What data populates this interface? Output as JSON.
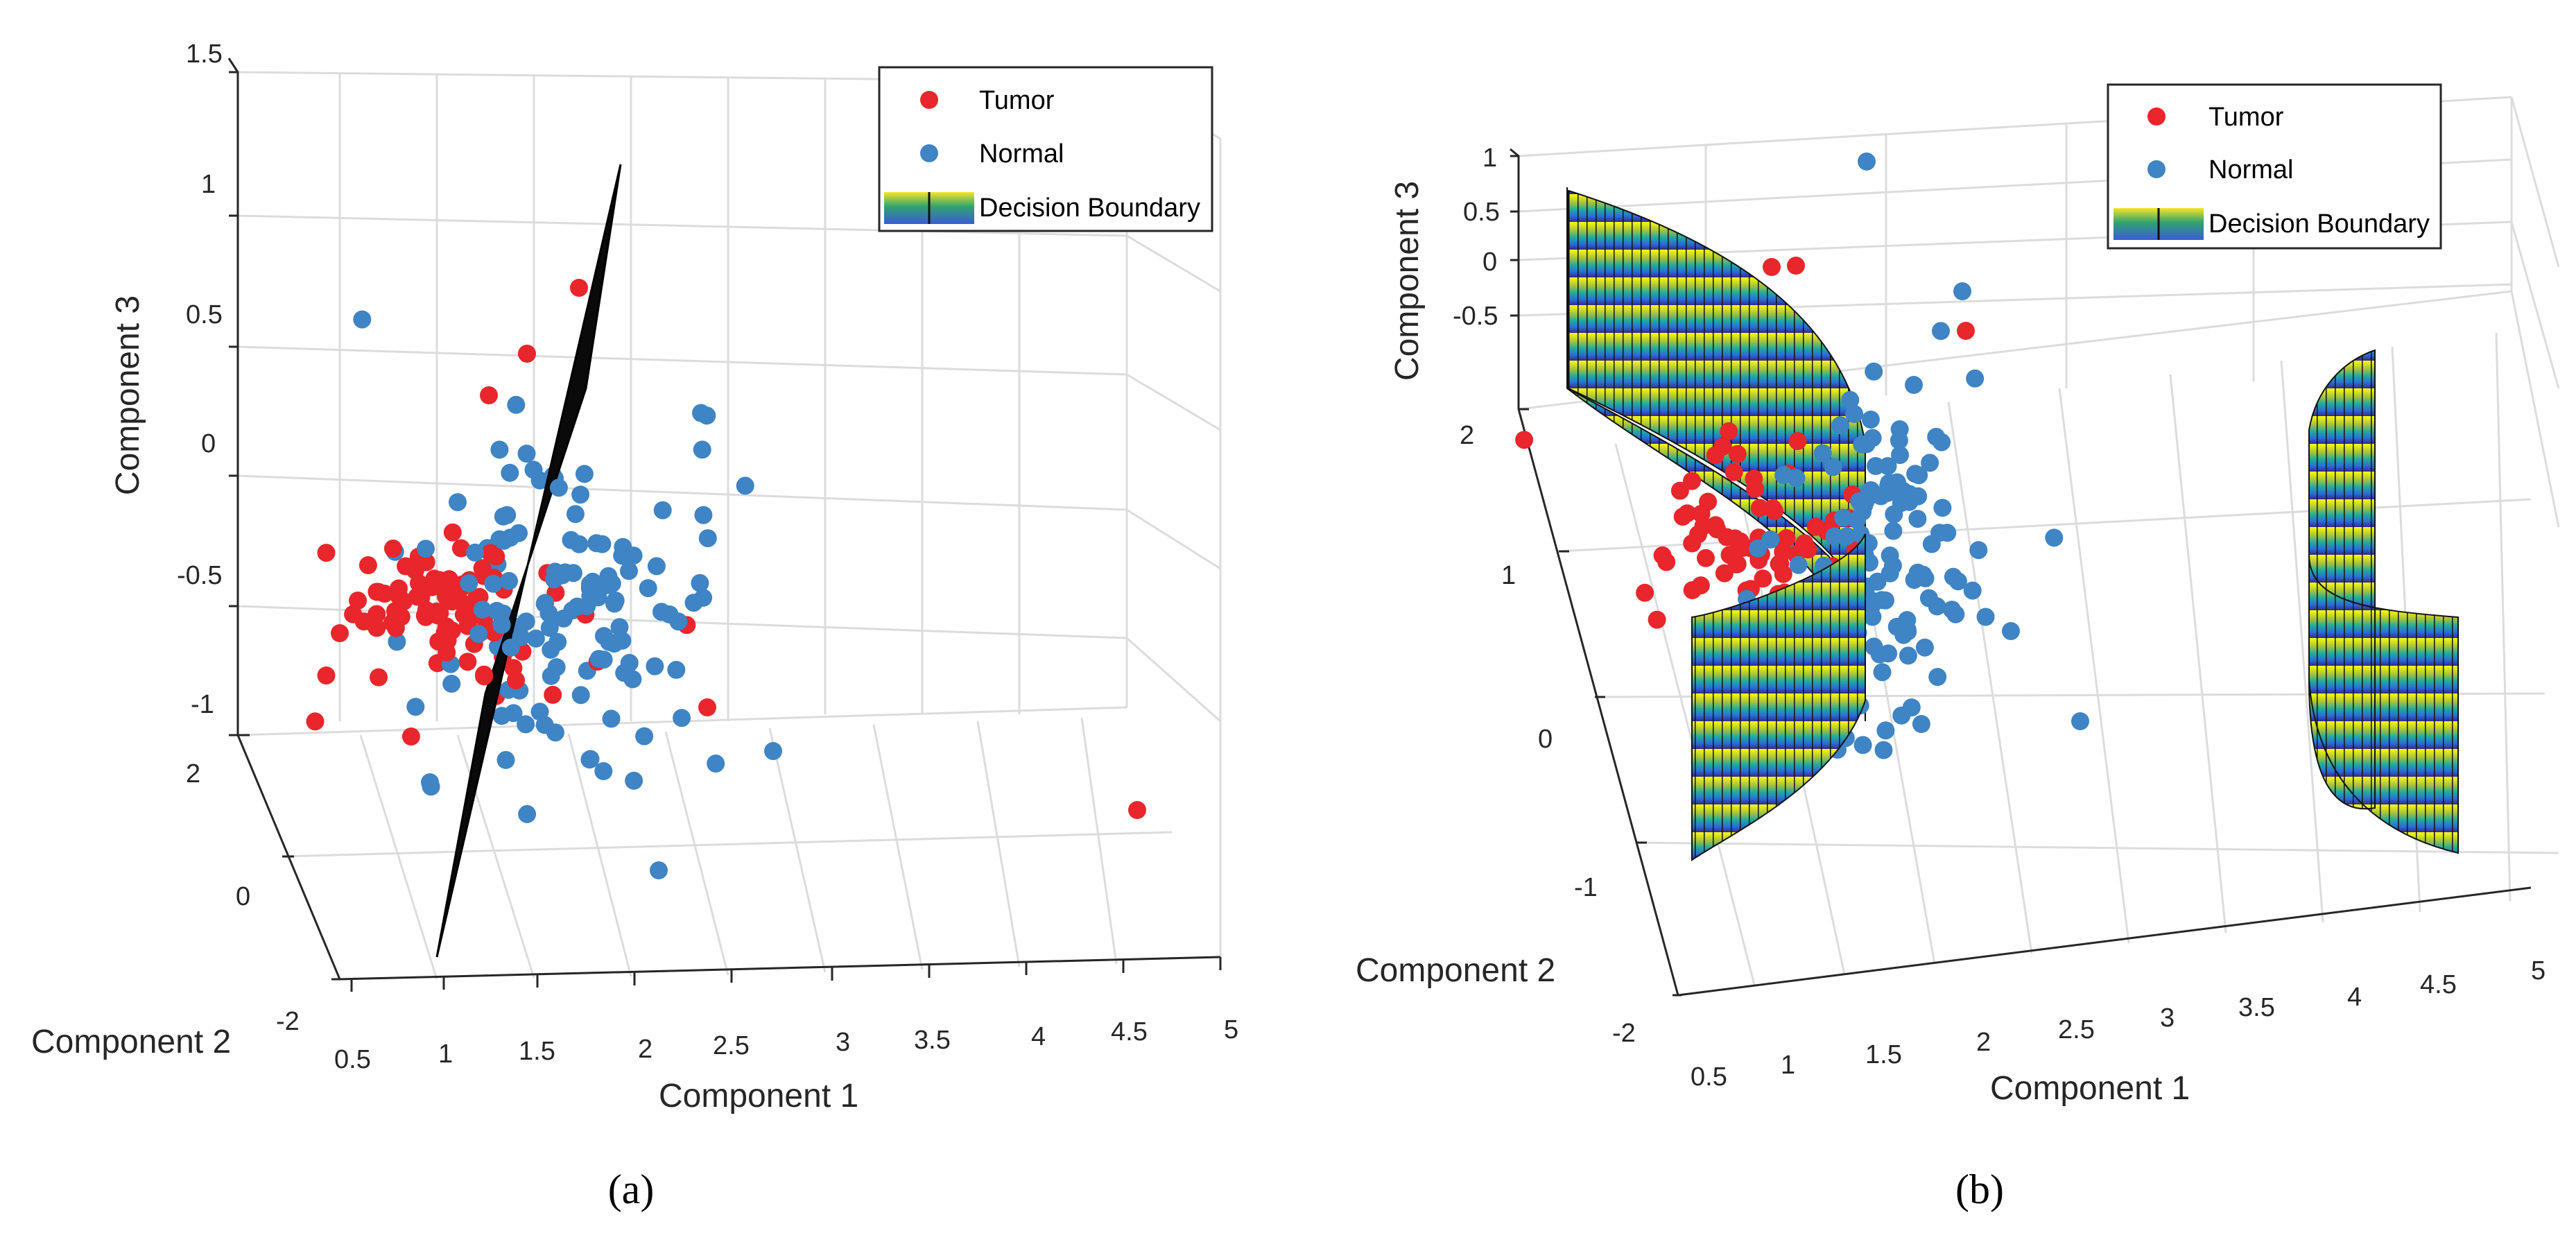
{
  "chart_data": [
    {
      "id": "a",
      "type": "scatter",
      "caption": "(a)",
      "xlabel": "Component 1",
      "ylabel": "Component 2",
      "zlabel": "Component 3",
      "xticks": [
        "0.5",
        "1",
        "1.5",
        "2",
        "2.5",
        "3",
        "3.5",
        "4",
        "4.5",
        "5"
      ],
      "yticks": [
        "-2",
        "0",
        "2"
      ],
      "zticks": [
        "-1",
        "-0.5",
        "0",
        "0.5",
        "1",
        "1.5"
      ],
      "xlim": [
        0.5,
        5
      ],
      "ylim": [
        -2,
        2
      ],
      "zlim": [
        -1,
        1.5
      ],
      "legend": [
        {
          "name": "Tumor",
          "color": "#e8262b",
          "kind": "marker"
        },
        {
          "name": "Normal",
          "color": "#3f84c4",
          "kind": "marker"
        },
        {
          "name": "Decision Boundary",
          "kind": "surface",
          "colors": [
            "#f5e52a",
            "#2fa36e",
            "#3b5bd8"
          ]
        }
      ],
      "legend_position": "top-right",
      "boundary": "linear plane (black)",
      "series": [
        {
          "name": "Tumor",
          "color": "#e8262b",
          "count": 90
        },
        {
          "name": "Normal",
          "color": "#3f84c4",
          "count": 130
        }
      ],
      "outliers": [
        {
          "series": "Tumor",
          "x": 4.5,
          "y": 1.0,
          "z": -0.7
        },
        {
          "series": "Tumor",
          "x": 2.6,
          "y": 1.4,
          "z": -0.6
        },
        {
          "series": "Normal",
          "x": 2.9,
          "y": 1.0,
          "z": -0.7
        },
        {
          "series": "Normal",
          "x": 1.9,
          "y": 0.4,
          "z": -0.9
        }
      ]
    },
    {
      "id": "b",
      "type": "scatter",
      "caption": "(b)",
      "xlabel": "Component 1",
      "ylabel": "Component 2",
      "zlabel": "Component 3",
      "xticks": [
        "0.5",
        "1",
        "1.5",
        "2",
        "2.5",
        "3",
        "3.5",
        "4",
        "4.5",
        "5"
      ],
      "yticks": [
        "-2",
        "-1",
        "0",
        "1",
        "2"
      ],
      "zticks": [
        "-0.5",
        "0",
        "0.5",
        "1"
      ],
      "xlim": [
        0.5,
        5
      ],
      "ylim": [
        -2,
        2
      ],
      "zlim": [
        -0.5,
        1
      ],
      "legend": [
        {
          "name": "Tumor",
          "color": "#e8262b",
          "kind": "marker"
        },
        {
          "name": "Normal",
          "color": "#3f84c4",
          "kind": "marker"
        },
        {
          "name": "Decision Boundary",
          "kind": "surface",
          "colors": [
            "#f5e52a",
            "#2fa36e",
            "#3b5bd8"
          ]
        }
      ],
      "legend_position": "top-right",
      "boundary": "nonlinear curved surface (parula colormap)",
      "series": [
        {
          "name": "Tumor",
          "color": "#e8262b",
          "count": 70
        },
        {
          "name": "Normal",
          "color": "#3f84c4",
          "count": 130
        }
      ],
      "outliers": [
        {
          "series": "Normal",
          "x": 2.6,
          "y": 0.2,
          "z": -0.5
        }
      ]
    }
  ]
}
